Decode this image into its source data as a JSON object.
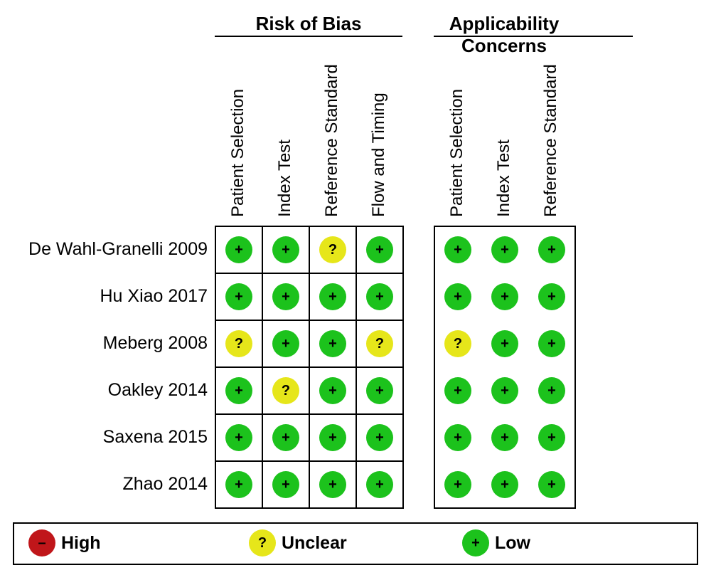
{
  "chart_data": {
    "type": "table",
    "groups": [
      {
        "title": "Risk of Bias",
        "columns": [
          "Patient Selection",
          "Index Test",
          "Reference Standard",
          "Flow and Timing"
        ]
      },
      {
        "title": "Applicability Concerns",
        "columns": [
          "Patient Selection",
          "Index Test",
          "Reference Standard"
        ]
      }
    ],
    "studies": [
      {
        "name": "De Wahl-Granelli 2009",
        "risk_of_bias": [
          "low",
          "low",
          "unclear",
          "low"
        ],
        "applicability": [
          "low",
          "low",
          "low"
        ]
      },
      {
        "name": "Hu Xiao 2017",
        "risk_of_bias": [
          "low",
          "low",
          "low",
          "low"
        ],
        "applicability": [
          "low",
          "low",
          "low"
        ]
      },
      {
        "name": "Meberg 2008",
        "risk_of_bias": [
          "unclear",
          "low",
          "low",
          "unclear"
        ],
        "applicability": [
          "unclear",
          "low",
          "low"
        ]
      },
      {
        "name": "Oakley 2014",
        "risk_of_bias": [
          "low",
          "unclear",
          "low",
          "low"
        ],
        "applicability": [
          "low",
          "low",
          "low"
        ]
      },
      {
        "name": "Saxena 2015",
        "risk_of_bias": [
          "low",
          "low",
          "low",
          "low"
        ],
        "applicability": [
          "low",
          "low",
          "low"
        ]
      },
      {
        "name": "Zhao 2014",
        "risk_of_bias": [
          "low",
          "low",
          "low",
          "low"
        ],
        "applicability": [
          "low",
          "low",
          "low"
        ]
      }
    ],
    "symbols": {
      "high": "–",
      "unclear": "?",
      "low": "+"
    },
    "colors": {
      "high": "#c0161a",
      "unclear": "#e6e61a",
      "low": "#1cc21c"
    },
    "legend": [
      {
        "key": "high",
        "label": "High"
      },
      {
        "key": "unclear",
        "label": "Unclear"
      },
      {
        "key": "low",
        "label": "Low"
      }
    ]
  }
}
